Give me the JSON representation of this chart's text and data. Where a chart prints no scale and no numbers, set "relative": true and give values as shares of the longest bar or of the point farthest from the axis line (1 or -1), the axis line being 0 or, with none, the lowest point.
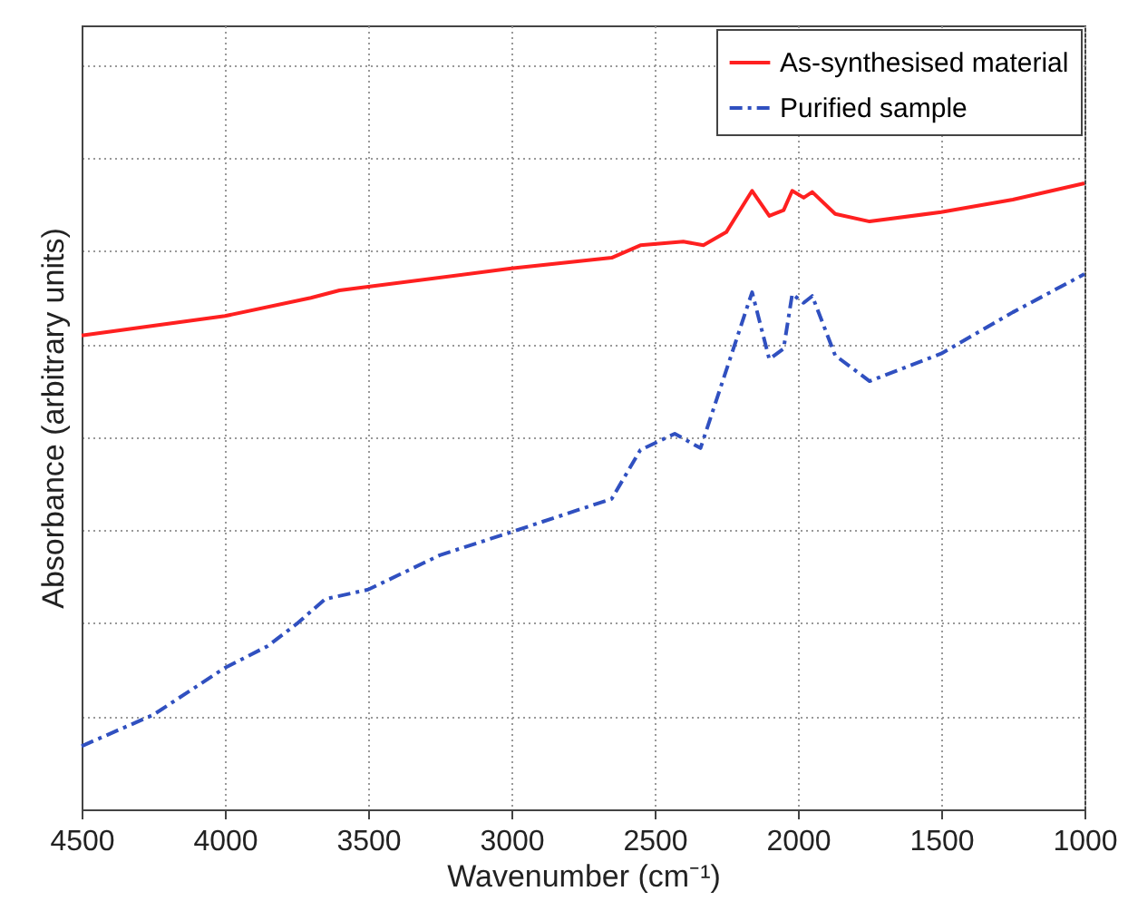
{
  "chart_data": {
    "type": "line",
    "xlabel": "Wavenumber (cm⁻¹)",
    "ylabel": "Absorbance (arbitrary units)",
    "relative": true,
    "xlim": [
      4500,
      1000
    ],
    "xticks": [
      4500,
      4000,
      3500,
      3000,
      2500,
      2000,
      1500,
      1000
    ],
    "grid": true,
    "legend": "top right",
    "series": [
      {
        "name": "As-synthesised material",
        "color": "#ff2020",
        "line_style": "solid",
        "x": [
          4500,
          4000,
          3700,
          3600,
          3000,
          2650,
          2550,
          2400,
          2330,
          2250,
          2160,
          2100,
          2050,
          2020,
          1980,
          1950,
          1870,
          1750,
          1500,
          1250,
          1000
        ],
        "values": [
          0.757,
          0.788,
          0.817,
          0.829,
          0.864,
          0.881,
          0.901,
          0.907,
          0.901,
          0.922,
          0.988,
          0.948,
          0.957,
          0.988,
          0.977,
          0.986,
          0.951,
          0.939,
          0.954,
          0.974,
          1.0
        ]
      },
      {
        "name": "Purified sample",
        "color": "#3050c0",
        "line_style": "dashed",
        "x": [
          4500,
          4250,
          4000,
          3850,
          3750,
          3650,
          3500,
          3250,
          3000,
          2650,
          2550,
          2430,
          2340,
          2160,
          2100,
          2050,
          2020,
          1980,
          1950,
          1870,
          1750,
          1500,
          1250,
          1000
        ],
        "values": [
          0.101,
          0.151,
          0.226,
          0.261,
          0.296,
          0.336,
          0.351,
          0.406,
          0.443,
          0.496,
          0.574,
          0.6,
          0.577,
          0.826,
          0.719,
          0.736,
          0.823,
          0.809,
          0.82,
          0.725,
          0.684,
          0.728,
          0.794,
          0.855
        ]
      }
    ]
  }
}
